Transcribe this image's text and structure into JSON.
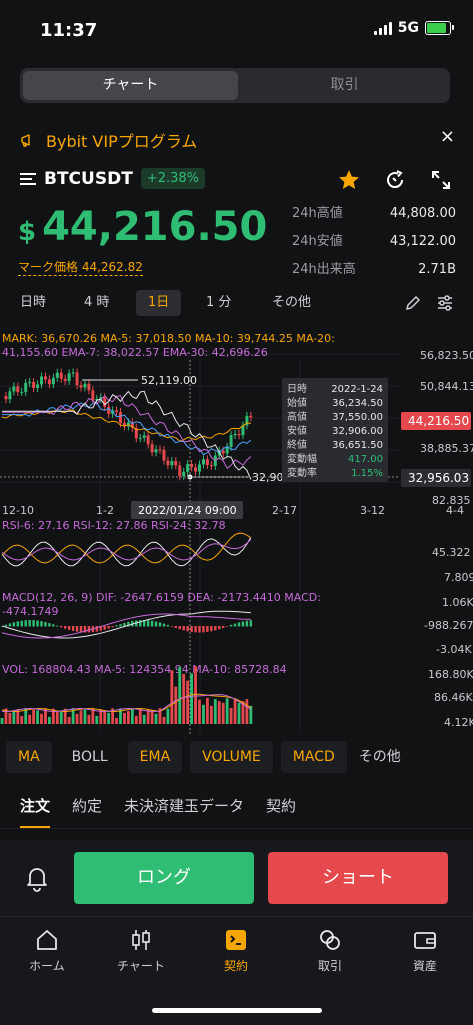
{
  "status": {
    "time": "11:37",
    "network": "5G"
  },
  "top_tabs": {
    "chart": "チャート",
    "trade": "取引"
  },
  "banner": {
    "text": "Bybit VIPプログラム",
    "close": "×"
  },
  "symbol": {
    "name": "BTCUSDT",
    "change": "+2.38%"
  },
  "price": {
    "currency": "$",
    "value": "44,216.50",
    "mark_label": "マーク価格 44,262.82"
  },
  "stats": [
    {
      "label": "24h高値",
      "value": "44,808.00"
    },
    {
      "label": "24h安値",
      "value": "43,122.00"
    },
    {
      "label": "24h出来高",
      "value": "2.71B"
    }
  ],
  "timeframes": [
    "日時",
    "4 時",
    "1日",
    "1 分",
    "その他"
  ],
  "selected_timeframe": "1日",
  "chart": {
    "ma_line1": "MARK: 36,670.26   MA-5: 37,018.50   MA-10: 39,744.25   MA-20:",
    "ma_line2": "41,155.60   EMA-7: 38,022.57   EMA-30: 42,696.26",
    "price_axis": [
      "56,823.50",
      "50,844.13",
      "38,885.37"
    ],
    "current_price_tag": "44,216.50",
    "cross_price_tag": "32,956.03",
    "high_marker": "52,119.00",
    "low_marker": "32,90",
    "date_ticks": [
      "12-10",
      "1-2",
      "2-17",
      "3-12"
    ],
    "cross_date": "2022/01/24 09:00",
    "tooltip": [
      {
        "k": "日時",
        "v": "2022-1-24"
      },
      {
        "k": "始値",
        "v": "36,234.50"
      },
      {
        "k": "高値",
        "v": "37,550.00"
      },
      {
        "k": "安値",
        "v": "32,906.00"
      },
      {
        "k": "終値",
        "v": "36,651.50"
      },
      {
        "k": "変動幅",
        "v": "417.00"
      },
      {
        "k": "変動率",
        "v": "1.15%"
      }
    ],
    "axis_right_extra": "4-4",
    "rsi_label": "RSI-6: 27.16   RSI-12: 27.86   RSI-24: 32.78",
    "rsi_axis": [
      "82.835",
      "45.322",
      "7.809"
    ],
    "macd_label1": "MACD(12, 26, 9)  DIF: -2647.6159   DEA: -2173.4410   MACD:",
    "macd_label2": "-474.1749",
    "macd_axis": [
      "1.06K",
      "-988.267",
      "-3.04K"
    ],
    "vol_label": "VOL: 168804.43   MA-5: 124354.94   MA-10: 85728.84",
    "vol_axis": [
      "168.80K",
      "86.46K",
      "4.12K"
    ]
  },
  "indicators": [
    "MA",
    "BOLL",
    "EMA",
    "VOLUME",
    "MACD",
    "その他"
  ],
  "bottom_tabs": [
    "注文",
    "約定",
    "未決済建玉データ",
    "契約"
  ],
  "actions": {
    "long": "ロング",
    "short": "ショート"
  },
  "nav": [
    {
      "label": "ホーム",
      "icon": "home-icon"
    },
    {
      "label": "チャート",
      "icon": "candles-icon"
    },
    {
      "label": "契約",
      "icon": "contract-icon"
    },
    {
      "label": "取引",
      "icon": "exchange-icon"
    },
    {
      "label": "資産",
      "icon": "wallet-icon"
    }
  ],
  "colors": {
    "up": "#2fbd73",
    "down": "#e5484d",
    "accent": "#f7a600",
    "bg": "#111214"
  }
}
